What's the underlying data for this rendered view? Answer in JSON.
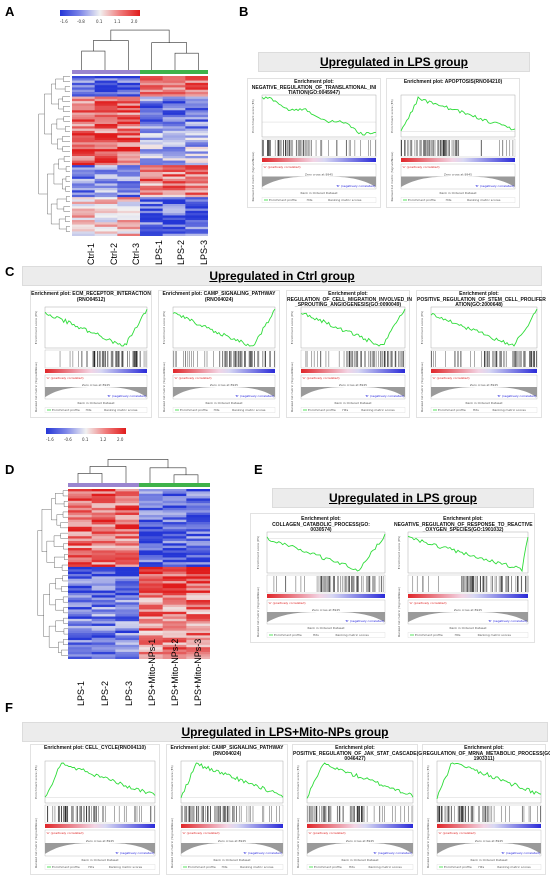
{
  "panels": {
    "A": {
      "letter": "A",
      "scale_ticks": [
        "-1.6",
        "-0.8",
        "0.1",
        "1.1",
        "2.0"
      ],
      "samples": [
        "Ctrl-1",
        "Ctrl-2",
        "Ctrl-3",
        "LPS-1",
        "LPS-2",
        "LPS-3"
      ],
      "group_colors": [
        "#9a85cf",
        "#9a85cf",
        "#9a85cf",
        "#3fb24a",
        "#3fb24a",
        "#3fb24a"
      ]
    },
    "B": {
      "letter": "B",
      "banner": "Upregulated in LPS group",
      "plots": [
        {
          "title": "Enrichment plot:\nNEGATIVE_REGULATION_OF_TRANSLATIONAL_INI\nTIATION(GO:0045947)"
        },
        {
          "title": "Enrichment plot: APOPTOSIS(RNO04210)"
        }
      ]
    },
    "C": {
      "letter": "C",
      "banner": "Upregulated in Ctrl group",
      "plots": [
        {
          "title": "Enrichment plot: ECM_RECEPTOR_INTERACTION\n(RNO04512)"
        },
        {
          "title": "Enrichment plot: CAMP_SIGNALING_PATHWAY\n(RNO04024)"
        },
        {
          "title": "Enrichment plot:\nREGULATION_OF_CELL_MIGRATION_INVOLVED_IN\n_SPROUTING_ANGIOGENESIS(GO:0090049)"
        },
        {
          "title": "Enrichment plot: POSITIVE_REGULATION_OF_STEM_CELL_PROLIFER\nATION(GO:2000648)"
        }
      ]
    },
    "D": {
      "letter": "D",
      "scale_ticks": [
        "-1.6",
        "-0.6",
        "0.1",
        "1.2",
        "2.0"
      ],
      "samples": [
        "LPS-1",
        "LPS-2",
        "LPS-3",
        "LPS+Mito-NPs-1",
        "LPS+Mito-NPs-2",
        "LPS+Mito-NPs-3"
      ],
      "group_colors": [
        "#9a85cf",
        "#9a85cf",
        "#9a85cf",
        "#3fb24a",
        "#3fb24a",
        "#3fb24a"
      ]
    },
    "E": {
      "letter": "E",
      "banner": "Upregulated in LPS group",
      "plots": [
        {
          "title": "Enrichment plot: COLLAGEN_CATABOLIC_PROCESS(GO:\n0030574)"
        },
        {
          "title": "Enrichment plot:\nNEGATIVE_REGULATION_OF_RESPONSE_TO_REACTIVE\n_OXYGEN_SPECIES(GO:1901032)"
        }
      ]
    },
    "F": {
      "letter": "F",
      "banner": "Upregulated in LPS+Mito-NPs group",
      "plots": [
        {
          "title": "Enrichment plot: CELL_CYCLE(RNO04110)"
        },
        {
          "title": "Enrichment plot: CAMP_SIGNALING_PATHWAY\n(RNO04024)"
        },
        {
          "title": "Enrichment plot:\nPOSITIVE_REGULATION_OF_JAK_STAT_CASCADE(GO:\n0046427)"
        },
        {
          "title": "Enrichment plot:\nREGULATION_OF_MRNA_METABOLIC_PROCESS(GO:\n1903311)"
        }
      ]
    }
  },
  "gsea_common": {
    "y_label": "Enrichment score (ES)",
    "rank_label": "Ranked list metric (Signal2Noise)",
    "x_label": "Rank in Ordered Dataset",
    "legend_es": "Enrichment profile",
    "legend_hits": "Hits",
    "legend_metric": "Ranking metric scores",
    "pos_label": "'A' (positively correlated)",
    "neg_label": "'B' (negatively correlated)",
    "zero_label": "Zero cross at 8945",
    "es_color": "#2fdc3a"
  }
}
